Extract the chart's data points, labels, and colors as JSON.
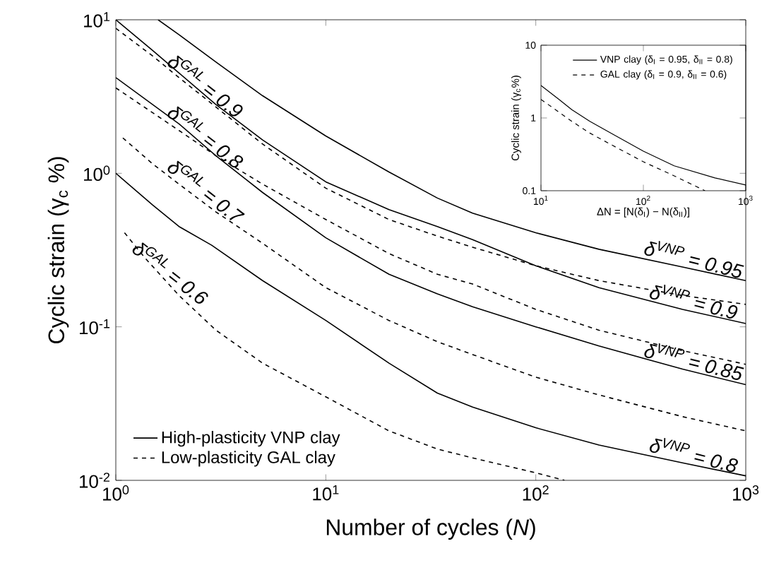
{
  "chart_data": [
    {
      "type": "line",
      "xlabel": "Number of cycles (*N*)",
      "ylabel": "Cyclic strain (γ$_{c}$ %)",
      "log": "xy",
      "xlim": [
        1,
        1000
      ],
      "ylim": [
        0.01,
        10
      ],
      "xticks": [
        {
          "value": 1,
          "label": "10$^{0}$"
        },
        {
          "value": 10,
          "label": "10$^{1}$"
        },
        {
          "value": 100,
          "label": "10$^{2}$"
        },
        {
          "value": 1000,
          "label": "10$^{3}$"
        }
      ],
      "yticks": [
        {
          "value": 0.01,
          "label": "10$^{-2}$"
        },
        {
          "value": 0.1,
          "label": "10$^{-1}$"
        },
        {
          "value": 1,
          "label": "10$^{0}$"
        },
        {
          "value": 10,
          "label": "10$^{1}$"
        }
      ],
      "legend": "bottom left",
      "marker": "none",
      "series": [
        {
          "name": "High-plasticity VNP clay",
          "color": "#000000",
          "line_style": "solid",
          "x": [
            1.59,
            2,
            3,
            5,
            10,
            20,
            34,
            50,
            100,
            200,
            500,
            1000
          ],
          "values": [
            10,
            8.0,
            5.3,
            3.2,
            1.75,
            1.02,
            0.69,
            0.55,
            0.41,
            0.32,
            0.245,
            0.2
          ]
        },
        {
          "color": "#000000",
          "line_style": "solid",
          "x": [
            1,
            1.5,
            2,
            3,
            5,
            10,
            20,
            34,
            50,
            100,
            200,
            500,
            1000
          ],
          "values": [
            10,
            6.3,
            4.5,
            2.8,
            1.65,
            0.88,
            0.58,
            0.45,
            0.37,
            0.25,
            0.18,
            0.13,
            0.105
          ]
        },
        {
          "color": "#000000",
          "line_style": "solid",
          "x": [
            1,
            2,
            3,
            5,
            10,
            20,
            34,
            50,
            100,
            200,
            500,
            1000
          ],
          "values": [
            4.2,
            2.1,
            1.3,
            0.75,
            0.38,
            0.22,
            0.164,
            0.135,
            0.1,
            0.075,
            0.053,
            0.042
          ]
        },
        {
          "color": "#000000",
          "line_style": "solid",
          "x": [
            1,
            1.5,
            2,
            2.86,
            5,
            10,
            20,
            34,
            50,
            100,
            200,
            500,
            1000
          ],
          "values": [
            1.0,
            0.62,
            0.45,
            0.34,
            0.2,
            0.11,
            0.058,
            0.037,
            0.03,
            0.022,
            0.017,
            0.013,
            0.0107
          ]
        },
        {
          "name": "Low-plasticity GAL clay",
          "color": "#000000",
          "line_style": "dashed",
          "x": [
            1,
            1.5,
            2,
            3,
            5,
            10,
            20,
            34,
            50,
            100,
            200,
            500,
            1000
          ],
          "values": [
            8.8,
            5.8,
            4.2,
            2.7,
            1.55,
            0.8,
            0.5,
            0.39,
            0.33,
            0.25,
            0.2,
            0.16,
            0.14
          ]
        },
        {
          "color": "#000000",
          "line_style": "dashed",
          "x": [
            1,
            2,
            3,
            5,
            10,
            20,
            34,
            50,
            100,
            200,
            500,
            1000
          ],
          "values": [
            3.6,
            1.9,
            1.3,
            0.85,
            0.5,
            0.3,
            0.22,
            0.19,
            0.13,
            0.095,
            0.07,
            0.057
          ]
        },
        {
          "color": "#000000",
          "line_style": "dashed",
          "x": [
            1.08,
            1.5,
            2,
            3,
            5,
            10,
            20,
            34,
            50,
            100,
            200,
            500,
            1000
          ],
          "values": [
            1.7,
            1.15,
            0.85,
            0.56,
            0.35,
            0.18,
            0.11,
            0.08,
            0.066,
            0.047,
            0.036,
            0.026,
            0.021
          ]
        },
        {
          "color": "#000000",
          "line_style": "dashed",
          "x": [
            1.1,
            1.38,
            2,
            3,
            5,
            10,
            20,
            34,
            50,
            100,
            137
          ],
          "values": [
            0.41,
            0.28,
            0.16,
            0.095,
            0.058,
            0.035,
            0.021,
            0.016,
            0.014,
            0.0112,
            0.01
          ]
        }
      ],
      "annotations": [
        {
          "text": "δ$^{GAL}$ = 0.9",
          "x": 2.5,
          "y": 3.3
        },
        {
          "text": "δ$^{GAL}$ = 0.8",
          "x": 2.5,
          "y": 1.54
        },
        {
          "text": "δ$^{GAL}$ = 0.7",
          "x": 2.5,
          "y": 0.68
        },
        {
          "text": "δ$^{GAL}$ = 0.6",
          "x": 1.7,
          "y": 0.2
        },
        {
          "text": "δ$^{VNP}$ = 0.95",
          "x": 550,
          "y": 0.238
        },
        {
          "text": "δ$^{VNP}$ = 0.9",
          "x": 550,
          "y": 0.126
        },
        {
          "text": "δ$^{VNP}$ = 0.85",
          "x": 550,
          "y": 0.0513
        },
        {
          "text": "δ$^{VNP}$ = 0.8",
          "x": 550,
          "y": 0.01265
        }
      ]
    },
    {
      "type": "line",
      "xlabel": "ΔN = [N(δ$_{I}$) − N(δ$_{II}$)]",
      "ylabel": "Cyclic strain (γ$_{c}$%)",
      "log": "xy",
      "xlim": [
        10,
        1000
      ],
      "ylim": [
        0.1,
        10
      ],
      "xticks": [
        {
          "value": 10,
          "label": "10$^{1}$"
        },
        {
          "value": 100,
          "label": "10$^{2}$"
        },
        {
          "value": 1000,
          "label": "10$^{3}$"
        }
      ],
      "yticks": [
        0.1,
        1,
        10
      ],
      "legend": "top right",
      "marker": "none",
      "series": [
        {
          "name": "VNP clay (δ$_{I}$ = 0.95, δ$_{II}$ = 0.8)",
          "color": "#000000",
          "line_style": "solid",
          "x": [
            10,
            15,
            20,
            30,
            50,
            100,
            200,
            500,
            1000
          ],
          "values": [
            2.8,
            1.8,
            1.3,
            0.9,
            0.6,
            0.35,
            0.22,
            0.15,
            0.12
          ]
        },
        {
          "name": "GAL clay (δ$_{I}$ = 0.9, δ$_{II}$ = 0.6)",
          "color": "#000000",
          "line_style": "dashed",
          "x": [
            10,
            15,
            20,
            30,
            50,
            100,
            200,
            400
          ],
          "values": [
            1.8,
            1.2,
            0.9,
            0.62,
            0.42,
            0.25,
            0.16,
            0.1
          ]
        }
      ]
    }
  ]
}
